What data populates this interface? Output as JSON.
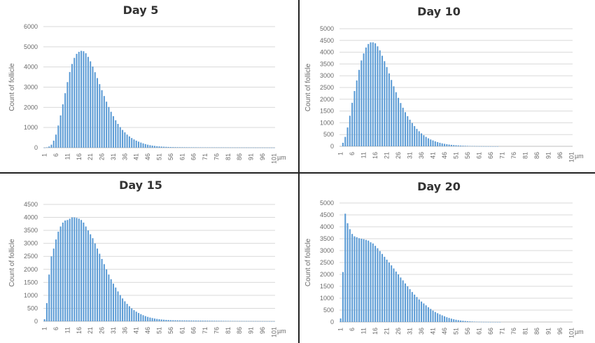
{
  "chart_data": [
    {
      "type": "bar",
      "title": "Day 5",
      "ylabel": "Count of follicle",
      "xunit": "µm",
      "ylim": [
        0,
        6000
      ],
      "yticks": [
        0,
        1000,
        2000,
        3000,
        4000,
        5000,
        6000
      ],
      "xticks": [
        "1",
        "6",
        "11",
        "16",
        "21",
        "26",
        "31",
        "36",
        "41",
        "46",
        "51",
        "56",
        "61",
        "66",
        "71",
        "76",
        "81",
        "86",
        "91",
        "96",
        "101"
      ],
      "grid": true,
      "legend": "none",
      "bar_color": "#5b9bd5",
      "x": [
        1,
        2,
        3,
        4,
        5,
        6,
        7,
        8,
        9,
        10,
        11,
        12,
        13,
        14,
        15,
        16,
        17,
        18,
        19,
        20,
        21,
        22,
        23,
        24,
        25,
        26,
        27,
        28,
        29,
        30,
        31,
        32,
        33,
        34,
        35,
        36,
        37,
        38,
        39,
        40,
        41,
        42,
        43,
        44,
        45,
        46,
        47,
        48,
        49,
        50,
        51,
        52,
        53,
        54,
        55,
        56,
        57,
        58,
        59,
        60,
        61,
        62,
        63,
        64,
        65,
        66,
        67,
        68,
        69,
        70,
        71,
        72,
        73,
        74,
        75,
        76,
        77,
        78,
        79,
        80,
        81,
        82,
        83,
        84,
        85,
        86,
        87,
        88,
        89,
        90,
        91,
        92,
        93,
        94,
        95,
        96,
        97,
        98,
        99,
        100,
        101
      ],
      "values": [
        5,
        20,
        60,
        150,
        350,
        650,
        1100,
        1600,
        2150,
        2700,
        3250,
        3750,
        4150,
        4450,
        4650,
        4750,
        4800,
        4780,
        4680,
        4500,
        4280,
        4020,
        3740,
        3450,
        3150,
        2850,
        2560,
        2280,
        2020,
        1780,
        1560,
        1360,
        1180,
        1020,
        880,
        760,
        650,
        560,
        480,
        410,
        350,
        300,
        255,
        215,
        180,
        150,
        125,
        105,
        90,
        75,
        65,
        55,
        48,
        42,
        37,
        33,
        30,
        28,
        26,
        25,
        24,
        23,
        22,
        21,
        20,
        20,
        19,
        18,
        18,
        17,
        17,
        16,
        16,
        15,
        15,
        14,
        14,
        13,
        13,
        12,
        12,
        11,
        11,
        10,
        10,
        10,
        9,
        9,
        9,
        8,
        8,
        8,
        7,
        7,
        7,
        6,
        6,
        6,
        5,
        5,
        5
      ]
    },
    {
      "type": "bar",
      "title": "Day 10",
      "ylabel": "Count of follicle",
      "xunit": "µm",
      "ylim": [
        0,
        5000
      ],
      "yticks": [
        0,
        500,
        1000,
        1500,
        2000,
        2500,
        3000,
        3500,
        4000,
        4500,
        5000
      ],
      "xticks": [
        "1",
        "6",
        "11",
        "16",
        "21",
        "26",
        "31",
        "36",
        "41",
        "46",
        "51",
        "56",
        "61",
        "66",
        "71",
        "76",
        "81",
        "86",
        "91",
        "96",
        "101"
      ],
      "grid": true,
      "legend": "none",
      "bar_color": "#5b9bd5",
      "x": [
        1,
        2,
        3,
        4,
        5,
        6,
        7,
        8,
        9,
        10,
        11,
        12,
        13,
        14,
        15,
        16,
        17,
        18,
        19,
        20,
        21,
        22,
        23,
        24,
        25,
        26,
        27,
        28,
        29,
        30,
        31,
        32,
        33,
        34,
        35,
        36,
        37,
        38,
        39,
        40,
        41,
        42,
        43,
        44,
        45,
        46,
        47,
        48,
        49,
        50,
        51,
        52,
        53,
        54,
        55,
        56,
        57,
        58,
        59,
        60,
        61,
        62,
        63,
        64,
        65,
        66,
        67,
        68,
        69,
        70,
        71,
        72,
        73,
        74,
        75,
        76,
        77,
        78,
        79,
        80,
        81,
        82,
        83,
        84,
        85,
        86,
        87,
        88,
        89,
        90,
        91,
        92,
        93,
        94,
        95,
        96,
        97,
        98,
        99,
        100,
        101
      ],
      "values": [
        0,
        150,
        400,
        800,
        1300,
        1850,
        2350,
        2800,
        3250,
        3650,
        3950,
        4200,
        4350,
        4420,
        4420,
        4380,
        4250,
        4080,
        3850,
        3620,
        3370,
        3100,
        2820,
        2550,
        2300,
        2060,
        1840,
        1640,
        1450,
        1280,
        1130,
        990,
        860,
        740,
        640,
        550,
        470,
        400,
        340,
        290,
        250,
        210,
        180,
        150,
        125,
        105,
        90,
        75,
        62,
        52,
        44,
        37,
        31,
        26,
        22,
        18,
        15,
        12,
        10,
        8,
        6,
        5,
        4,
        3,
        2,
        2,
        1,
        1,
        1,
        0,
        0,
        0,
        0,
        0,
        0,
        0,
        0,
        0,
        0,
        0,
        0,
        0,
        0,
        0,
        0,
        0,
        0,
        0,
        0,
        0,
        0,
        0,
        0,
        0,
        0,
        0,
        0,
        0,
        0,
        0,
        0
      ]
    },
    {
      "type": "bar",
      "title": "Day 15",
      "ylabel": "Count of follicle",
      "xunit": "µm",
      "ylim": [
        0,
        4500
      ],
      "yticks": [
        0,
        500,
        1000,
        1500,
        2000,
        2500,
        3000,
        3500,
        4000,
        4500
      ],
      "xticks": [
        "1",
        "6",
        "11",
        "16",
        "21",
        "26",
        "31",
        "36",
        "41",
        "46",
        "51",
        "56",
        "61",
        "66",
        "71",
        "76",
        "81",
        "86",
        "91",
        "96",
        "101"
      ],
      "grid": true,
      "legend": "none",
      "bar_color": "#5b9bd5",
      "x": [
        1,
        2,
        3,
        4,
        5,
        6,
        7,
        8,
        9,
        10,
        11,
        12,
        13,
        14,
        15,
        16,
        17,
        18,
        19,
        20,
        21,
        22,
        23,
        24,
        25,
        26,
        27,
        28,
        29,
        30,
        31,
        32,
        33,
        34,
        35,
        36,
        37,
        38,
        39,
        40,
        41,
        42,
        43,
        44,
        45,
        46,
        47,
        48,
        49,
        50,
        51,
        52,
        53,
        54,
        55,
        56,
        57,
        58,
        59,
        60,
        61,
        62,
        63,
        64,
        65,
        66,
        67,
        68,
        69,
        70,
        71,
        72,
        73,
        74,
        75,
        76,
        77,
        78,
        79,
        80,
        81,
        82,
        83,
        84,
        85,
        86,
        87,
        88,
        89,
        90,
        91,
        92,
        93,
        94,
        95,
        96,
        97,
        98,
        99,
        100,
        101
      ],
      "values": [
        80,
        700,
        1800,
        2500,
        2800,
        3150,
        3450,
        3650,
        3800,
        3880,
        3900,
        3950,
        4000,
        4000,
        3980,
        3950,
        3900,
        3800,
        3650,
        3500,
        3350,
        3200,
        3000,
        2800,
        2600,
        2400,
        2200,
        2000,
        1800,
        1620,
        1450,
        1300,
        1150,
        1010,
        880,
        770,
        670,
        580,
        500,
        430,
        370,
        320,
        275,
        235,
        200,
        170,
        145,
        125,
        107,
        92,
        80,
        70,
        62,
        55,
        50,
        45,
        42,
        40,
        38,
        36,
        35,
        34,
        33,
        32,
        31,
        30,
        29,
        28,
        27,
        26,
        25,
        24,
        23,
        22,
        21,
        20,
        19,
        18,
        17,
        16,
        15,
        14,
        13,
        12,
        11,
        10,
        10,
        9,
        9,
        8,
        8,
        7,
        7,
        6,
        6,
        5,
        5,
        4,
        4,
        3,
        3
      ]
    },
    {
      "type": "bar",
      "title": "Day 20",
      "ylabel": "Count of follicle",
      "xunit": "µm",
      "ylim": [
        0,
        5000
      ],
      "yticks": [
        0,
        500,
        1000,
        1500,
        2000,
        2500,
        3000,
        3500,
        4000,
        4500,
        5000
      ],
      "xticks": [
        "1",
        "6",
        "11",
        "16",
        "21",
        "26",
        "31",
        "36",
        "41",
        "46",
        "51",
        "56",
        "61",
        "66",
        "71",
        "76",
        "81",
        "86",
        "91",
        "96",
        "101"
      ],
      "grid": true,
      "legend": "none",
      "bar_color": "#5b9bd5",
      "x": [
        1,
        2,
        3,
        4,
        5,
        6,
        7,
        8,
        9,
        10,
        11,
        12,
        13,
        14,
        15,
        16,
        17,
        18,
        19,
        20,
        21,
        22,
        23,
        24,
        25,
        26,
        27,
        28,
        29,
        30,
        31,
        32,
        33,
        34,
        35,
        36,
        37,
        38,
        39,
        40,
        41,
        42,
        43,
        44,
        45,
        46,
        47,
        48,
        49,
        50,
        51,
        52,
        53,
        54,
        55,
        56,
        57,
        58,
        59,
        60,
        61,
        62,
        63,
        64,
        65,
        66,
        67,
        68,
        69,
        70,
        71,
        72,
        73,
        74,
        75,
        76,
        77,
        78,
        79,
        80,
        81,
        82,
        83,
        84,
        85,
        86,
        87,
        88,
        89,
        90,
        91,
        92,
        93,
        94,
        95,
        96,
        97,
        98,
        99,
        100,
        101
      ],
      "values": [
        150,
        2100,
        4550,
        4150,
        3900,
        3700,
        3600,
        3560,
        3520,
        3500,
        3480,
        3450,
        3420,
        3350,
        3300,
        3200,
        3100,
        2980,
        2860,
        2740,
        2620,
        2500,
        2380,
        2250,
        2120,
        2000,
        1870,
        1750,
        1620,
        1500,
        1380,
        1260,
        1150,
        1050,
        950,
        860,
        780,
        700,
        620,
        550,
        480,
        420,
        370,
        320,
        280,
        240,
        200,
        170,
        140,
        115,
        95,
        78,
        64,
        52,
        42,
        34,
        27,
        21,
        16,
        12,
        9,
        7,
        5,
        4,
        3,
        2,
        2,
        1,
        1,
        1,
        0,
        0,
        0,
        0,
        0,
        0,
        0,
        0,
        0,
        0,
        0,
        0,
        0,
        0,
        0,
        0,
        0,
        0,
        0,
        0,
        0,
        0,
        0,
        0,
        0,
        0,
        0,
        0,
        0,
        0,
        0
      ]
    }
  ]
}
